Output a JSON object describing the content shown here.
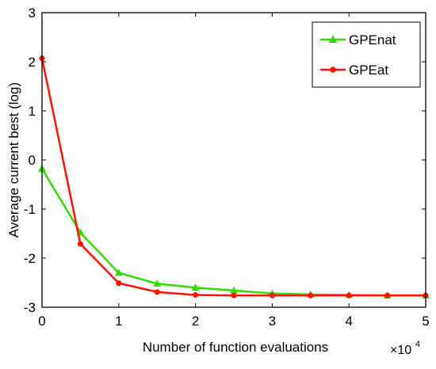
{
  "chart_data": {
    "type": "line",
    "title": "",
    "xlabel": "Number of function evaluations",
    "ylabel": "Average current best (log)",
    "x_scale_label": "×10",
    "x_scale_exponent": "4",
    "xlim": [
      0,
      5
    ],
    "ylim": [
      -3,
      3
    ],
    "xticks": [
      {
        "value": 0,
        "label": "0"
      },
      {
        "value": 1,
        "label": "1"
      },
      {
        "value": 2,
        "label": "2"
      },
      {
        "value": 3,
        "label": "3"
      },
      {
        "value": 4,
        "label": "4"
      },
      {
        "value": 5,
        "label": "5"
      }
    ],
    "yticks": [
      {
        "value": 3,
        "label": "3"
      },
      {
        "value": 2,
        "label": "2"
      },
      {
        "value": 1,
        "label": "1"
      },
      {
        "value": 0,
        "label": "0"
      },
      {
        "value": -1,
        "label": "-1"
      },
      {
        "value": -2,
        "label": "-2"
      },
      {
        "value": -3,
        "label": "-3"
      }
    ],
    "grid": false,
    "legend_position": "top-right",
    "series": [
      {
        "name": "GPEnat",
        "color": "#33dd00",
        "marker": "triangle",
        "x": [
          0,
          0.5,
          1,
          1.5,
          2,
          2.5,
          3,
          3.5,
          4,
          4.5,
          5
        ],
        "y": [
          -0.18,
          -1.48,
          -2.3,
          -2.52,
          -2.6,
          -2.66,
          -2.72,
          -2.74,
          -2.75,
          -2.76,
          -2.76
        ]
      },
      {
        "name": "GPEat",
        "color": "#ff1100",
        "marker": "circle",
        "x": [
          0,
          0.5,
          1,
          1.5,
          2,
          2.5,
          3,
          3.5,
          4,
          4.5,
          5
        ],
        "y": [
          2.07,
          -1.71,
          -2.51,
          -2.69,
          -2.75,
          -2.76,
          -2.76,
          -2.76,
          -2.76,
          -2.76,
          -2.76
        ]
      }
    ]
  }
}
